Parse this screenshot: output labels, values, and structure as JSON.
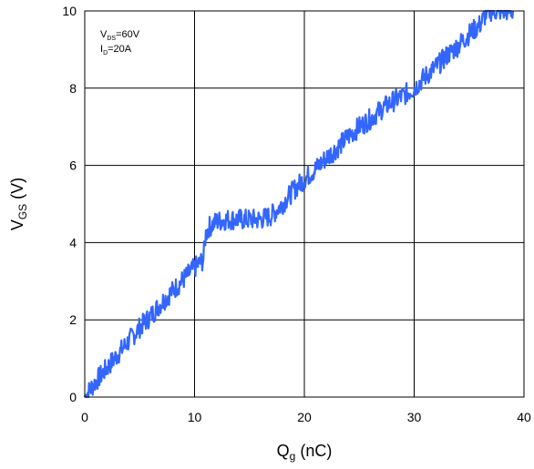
{
  "chart_data": {
    "type": "line",
    "xlabel": "Qg (nC)",
    "ylabel": "VGS (V)",
    "xlim": [
      0,
      40
    ],
    "ylim": [
      0,
      10
    ],
    "x_ticks": [
      "0",
      "10",
      "20",
      "30",
      "40"
    ],
    "y_ticks": [
      "0",
      "2",
      "4",
      "6",
      "8",
      "10"
    ],
    "grid": true,
    "annotations": [
      "VDS=60V",
      "ID=20A"
    ],
    "series_color": "#3366ff",
    "series": [
      {
        "x": [
          0,
          1,
          2,
          3,
          4,
          5,
          6,
          7,
          8,
          9,
          10,
          10.8,
          11.0,
          11.3,
          12,
          13,
          14,
          15,
          16,
          17,
          18,
          19,
          20,
          21,
          22,
          23,
          24,
          25,
          26,
          27,
          28,
          29,
          30,
          31,
          32,
          33,
          34,
          35,
          36,
          36.7,
          38,
          39
        ],
        "y": [
          0.0,
          0.4,
          0.75,
          1.1,
          1.45,
          1.8,
          2.1,
          2.45,
          2.75,
          3.05,
          3.35,
          3.55,
          4.2,
          4.4,
          4.55,
          4.6,
          4.6,
          4.6,
          4.6,
          4.7,
          5.0,
          5.35,
          5.65,
          5.9,
          6.2,
          6.45,
          6.75,
          7.0,
          7.2,
          7.45,
          7.65,
          7.8,
          8.0,
          8.3,
          8.55,
          8.85,
          9.1,
          9.4,
          9.65,
          10.0,
          10.0,
          10.0
        ]
      }
    ]
  }
}
